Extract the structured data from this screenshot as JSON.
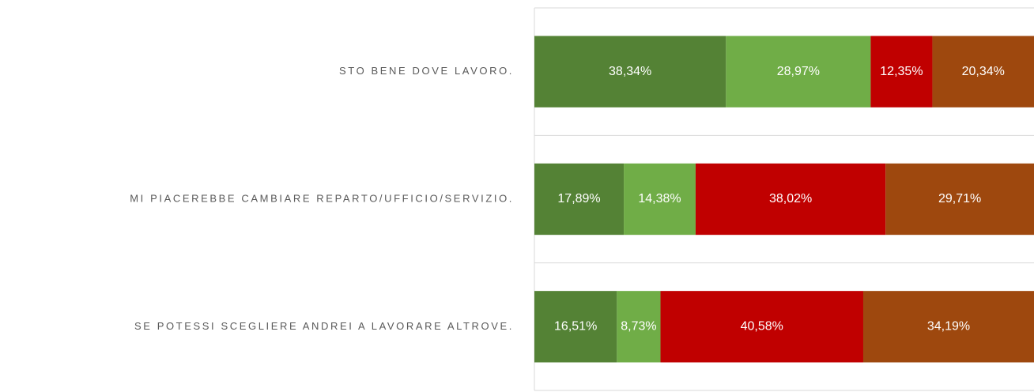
{
  "chart_data": {
    "type": "stacked-bar-horizontal",
    "categories": [
      "STO BENE DOVE LAVORO.",
      "MI PIACEREBBE CAMBIARE REPARTO/UFFICIO/SERVIZIO.",
      "SE POTESSI SCEGLIERE ANDREI A LAVORARE ALTROVE."
    ],
    "series": [
      {
        "color": "#548235",
        "values": [
          38.34,
          17.89,
          16.51
        ],
        "value_labels": [
          "38,34%",
          "17,89%",
          "16,51%"
        ]
      },
      {
        "color": "#70ad47",
        "values": [
          28.97,
          14.38,
          8.73
        ],
        "value_labels": [
          "28,97%",
          "14,38%",
          "8,73%"
        ]
      },
      {
        "color": "#c00000",
        "values": [
          12.35,
          38.02,
          40.58
        ],
        "value_labels": [
          "12,35%",
          "38,02%",
          "40,58%"
        ]
      },
      {
        "color": "#9e480e",
        "values": [
          20.34,
          29.71,
          34.19
        ],
        "value_labels": [
          "20,34%",
          "29,71%",
          "34,19%"
        ]
      }
    ],
    "xlim": [
      0,
      100
    ],
    "grid": true
  }
}
